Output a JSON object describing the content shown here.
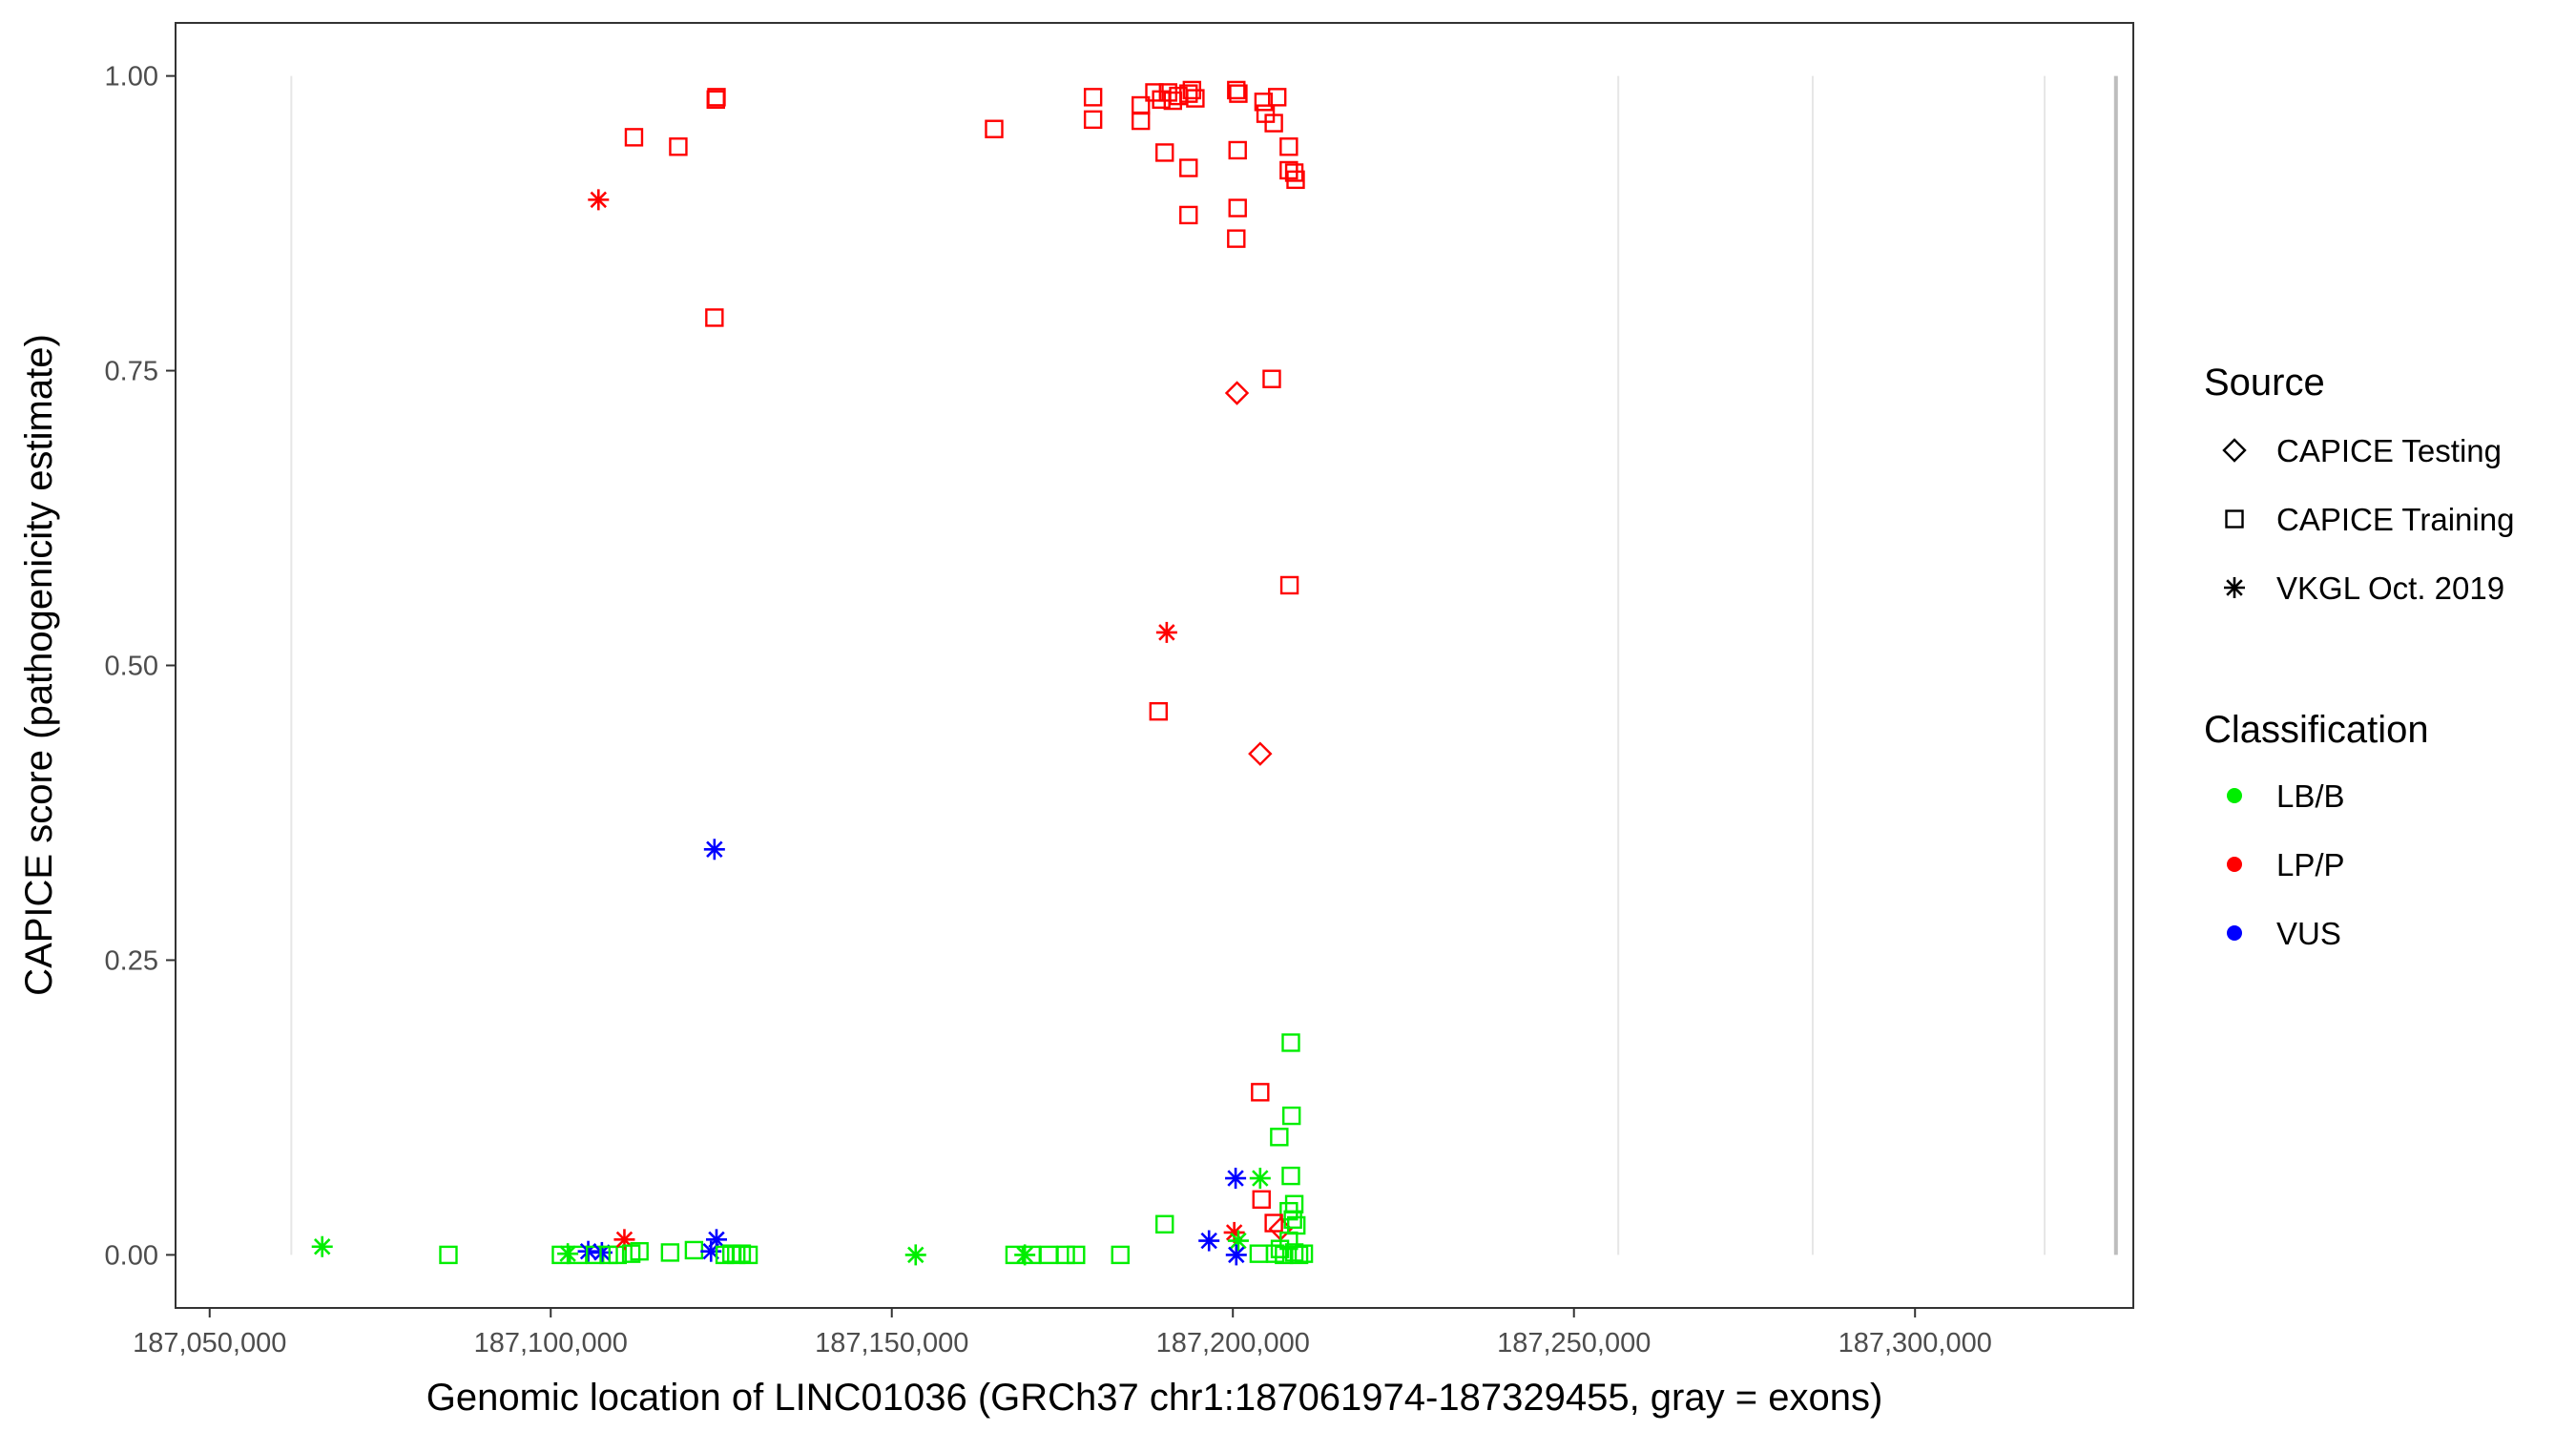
{
  "chart_data": {
    "type": "scatter",
    "xlabel": "Genomic location of LINC01036 (GRCh37 chr1:187061974-187329455, gray = exons)",
    "ylabel": "CAPICE score (pathogenicity estimate)",
    "xlim": [
      187045000,
      187332000
    ],
    "ylim": [
      -0.045,
      1.045
    ],
    "x_ticks": [
      187050000,
      187100000,
      187150000,
      187200000,
      187250000,
      187300000
    ],
    "x_tick_labels": [
      "187,050,000",
      "187,100,000",
      "187,150,000",
      "187,200,000",
      "187,250,000",
      "187,300,000"
    ],
    "y_ticks": [
      0,
      0.25,
      0.5,
      0.75,
      1
    ],
    "y_tick_labels": [
      "0.00",
      "0.25",
      "0.50",
      "0.75",
      "1.00"
    ],
    "grid": false,
    "exons": [
      {
        "x": 187061974,
        "weight": "light"
      },
      {
        "x": 187256500,
        "weight": "light"
      },
      {
        "x": 187285000,
        "weight": "light"
      },
      {
        "x": 187319000,
        "weight": "light"
      },
      {
        "x": 187329455,
        "weight": "strong"
      }
    ],
    "legend_placement": "right",
    "legend": {
      "source_title": "Source",
      "source_items": [
        {
          "label": "CAPICE Testing",
          "shape": "diamond"
        },
        {
          "label": "CAPICE Training",
          "shape": "square"
        },
        {
          "label": "VKGL Oct. 2019",
          "shape": "asterisk"
        }
      ],
      "classification_title": "Classification",
      "classification_items": [
        {
          "label": "LB/B",
          "color": "#00ee00"
        },
        {
          "label": "LP/P",
          "color": "#ff0000"
        },
        {
          "label": "VUS",
          "color": "#0000ff"
        }
      ]
    },
    "colors": {
      "LB/B": "#00ee00",
      "LP/P": "#ff0000",
      "VUS": "#0000ff"
    },
    "points": [
      {
        "x": 187124200,
        "y": 0.98,
        "source": "CAPICE Training",
        "class": "LP/P"
      },
      {
        "x": 187124300,
        "y": 0.982,
        "source": "CAPICE Training",
        "class": "LP/P"
      },
      {
        "x": 187112200,
        "y": 0.948,
        "source": "CAPICE Training",
        "class": "LP/P"
      },
      {
        "x": 187118700,
        "y": 0.94,
        "source": "CAPICE Training",
        "class": "LP/P"
      },
      {
        "x": 187124000,
        "y": 0.795,
        "source": "CAPICE Training",
        "class": "LP/P"
      },
      {
        "x": 187107000,
        "y": 0.895,
        "source": "VKGL Oct. 2019",
        "class": "LP/P"
      },
      {
        "x": 187165000,
        "y": 0.955,
        "source": "CAPICE Training",
        "class": "LP/P"
      },
      {
        "x": 187179500,
        "y": 0.982,
        "source": "CAPICE Training",
        "class": "LP/P"
      },
      {
        "x": 187179500,
        "y": 0.963,
        "source": "CAPICE Training",
        "class": "LP/P"
      },
      {
        "x": 187186500,
        "y": 0.975,
        "source": "CAPICE Training",
        "class": "LP/P"
      },
      {
        "x": 187186500,
        "y": 0.962,
        "source": "CAPICE Training",
        "class": "LP/P"
      },
      {
        "x": 187188500,
        "y": 0.986,
        "source": "CAPICE Training",
        "class": "LP/P"
      },
      {
        "x": 187189500,
        "y": 0.98,
        "source": "CAPICE Training",
        "class": "LP/P"
      },
      {
        "x": 187190500,
        "y": 0.986,
        "source": "CAPICE Training",
        "class": "LP/P"
      },
      {
        "x": 187191200,
        "y": 0.979,
        "source": "CAPICE Training",
        "class": "LP/P"
      },
      {
        "x": 187192000,
        "y": 0.983,
        "source": "CAPICE Training",
        "class": "LP/P"
      },
      {
        "x": 187193500,
        "y": 0.985,
        "source": "CAPICE Training",
        "class": "LP/P"
      },
      {
        "x": 187194000,
        "y": 0.988,
        "source": "CAPICE Training",
        "class": "LP/P"
      },
      {
        "x": 187194500,
        "y": 0.981,
        "source": "CAPICE Training",
        "class": "LP/P"
      },
      {
        "x": 187200500,
        "y": 0.988,
        "source": "CAPICE Training",
        "class": "LP/P"
      },
      {
        "x": 187200800,
        "y": 0.985,
        "source": "CAPICE Training",
        "class": "LP/P"
      },
      {
        "x": 187204500,
        "y": 0.978,
        "source": "CAPICE Training",
        "class": "LP/P"
      },
      {
        "x": 187204800,
        "y": 0.968,
        "source": "CAPICE Training",
        "class": "LP/P"
      },
      {
        "x": 187206500,
        "y": 0.982,
        "source": "CAPICE Training",
        "class": "LP/P"
      },
      {
        "x": 187206000,
        "y": 0.96,
        "source": "CAPICE Training",
        "class": "LP/P"
      },
      {
        "x": 187190000,
        "y": 0.935,
        "source": "CAPICE Training",
        "class": "LP/P"
      },
      {
        "x": 187193500,
        "y": 0.922,
        "source": "CAPICE Training",
        "class": "LP/P"
      },
      {
        "x": 187200700,
        "y": 0.937,
        "source": "CAPICE Training",
        "class": "LP/P"
      },
      {
        "x": 187208200,
        "y": 0.94,
        "source": "CAPICE Training",
        "class": "LP/P"
      },
      {
        "x": 187208200,
        "y": 0.92,
        "source": "CAPICE Training",
        "class": "LP/P"
      },
      {
        "x": 187209000,
        "y": 0.918,
        "source": "CAPICE Training",
        "class": "LP/P"
      },
      {
        "x": 187209200,
        "y": 0.912,
        "source": "CAPICE Training",
        "class": "LP/P"
      },
      {
        "x": 187193500,
        "y": 0.882,
        "source": "CAPICE Training",
        "class": "LP/P"
      },
      {
        "x": 187200700,
        "y": 0.888,
        "source": "CAPICE Training",
        "class": "LP/P"
      },
      {
        "x": 187200500,
        "y": 0.862,
        "source": "CAPICE Training",
        "class": "LP/P"
      },
      {
        "x": 187205700,
        "y": 0.743,
        "source": "CAPICE Training",
        "class": "LP/P"
      },
      {
        "x": 187200600,
        "y": 0.731,
        "source": "CAPICE Testing",
        "class": "LP/P"
      },
      {
        "x": 187208300,
        "y": 0.568,
        "source": "CAPICE Training",
        "class": "LP/P"
      },
      {
        "x": 187190300,
        "y": 0.528,
        "source": "VKGL Oct. 2019",
        "class": "LP/P"
      },
      {
        "x": 187189100,
        "y": 0.461,
        "source": "CAPICE Training",
        "class": "LP/P"
      },
      {
        "x": 187204000,
        "y": 0.425,
        "source": "CAPICE Testing",
        "class": "LP/P"
      },
      {
        "x": 187124000,
        "y": 0.344,
        "source": "VKGL Oct. 2019",
        "class": "VUS"
      },
      {
        "x": 187208500,
        "y": 0.18,
        "source": "CAPICE Training",
        "class": "LB/B"
      },
      {
        "x": 187204000,
        "y": 0.138,
        "source": "CAPICE Training",
        "class": "LP/P"
      },
      {
        "x": 187208600,
        "y": 0.118,
        "source": "CAPICE Training",
        "class": "LB/B"
      },
      {
        "x": 187206800,
        "y": 0.1,
        "source": "CAPICE Training",
        "class": "LB/B"
      },
      {
        "x": 187208500,
        "y": 0.067,
        "source": "CAPICE Training",
        "class": "LB/B"
      },
      {
        "x": 187204000,
        "y": 0.065,
        "source": "VKGL Oct. 2019",
        "class": "LB/B"
      },
      {
        "x": 187200400,
        "y": 0.065,
        "source": "VKGL Oct. 2019",
        "class": "VUS"
      },
      {
        "x": 187204200,
        "y": 0.047,
        "source": "CAPICE Training",
        "class": "LP/P"
      },
      {
        "x": 187209000,
        "y": 0.043,
        "source": "CAPICE Training",
        "class": "LB/B"
      },
      {
        "x": 187208200,
        "y": 0.037,
        "source": "CAPICE Training",
        "class": "LB/B"
      },
      {
        "x": 187190000,
        "y": 0.026,
        "source": "CAPICE Training",
        "class": "LB/B"
      },
      {
        "x": 187206000,
        "y": 0.027,
        "source": "CAPICE Training",
        "class": "LP/P"
      },
      {
        "x": 187207000,
        "y": 0.022,
        "source": "CAPICE Testing",
        "class": "LP/P"
      },
      {
        "x": 187208800,
        "y": 0.03,
        "source": "CAPICE Training",
        "class": "LB/B"
      },
      {
        "x": 187209300,
        "y": 0.025,
        "source": "CAPICE Training",
        "class": "LB/B"
      },
      {
        "x": 187200200,
        "y": 0.019,
        "source": "VKGL Oct. 2019",
        "class": "LP/P"
      },
      {
        "x": 187196500,
        "y": 0.012,
        "source": "VKGL Oct. 2019",
        "class": "VUS"
      },
      {
        "x": 187200800,
        "y": 0.012,
        "source": "VKGL Oct. 2019",
        "class": "LB/B"
      },
      {
        "x": 187200500,
        "y": 0.0,
        "source": "VKGL Oct. 2019",
        "class": "VUS"
      },
      {
        "x": 187203800,
        "y": 0.001,
        "source": "CAPICE Training",
        "class": "LB/B"
      },
      {
        "x": 187206200,
        "y": 0.001,
        "source": "CAPICE Training",
        "class": "LB/B"
      },
      {
        "x": 187206900,
        "y": 0.005,
        "source": "CAPICE Training",
        "class": "LB/B"
      },
      {
        "x": 187207500,
        "y": 0.0,
        "source": "CAPICE Training",
        "class": "LB/B"
      },
      {
        "x": 187208200,
        "y": 0.012,
        "source": "CAPICE Training",
        "class": "LB/B"
      },
      {
        "x": 187209000,
        "y": 0.002,
        "source": "CAPICE Training",
        "class": "LB/B"
      },
      {
        "x": 187209700,
        "y": 0.0,
        "source": "CAPICE Training",
        "class": "LB/B"
      },
      {
        "x": 187210400,
        "y": 0.001,
        "source": "CAPICE Training",
        "class": "LB/B"
      },
      {
        "x": 187066500,
        "y": 0.007,
        "source": "VKGL Oct. 2019",
        "class": "LB/B"
      },
      {
        "x": 187085000,
        "y": 0.0,
        "source": "CAPICE Training",
        "class": "LB/B"
      },
      {
        "x": 187101500,
        "y": 0.0,
        "source": "CAPICE Training",
        "class": "LB/B"
      },
      {
        "x": 187102500,
        "y": 0.001,
        "source": "VKGL Oct. 2019",
        "class": "LB/B"
      },
      {
        "x": 187104000,
        "y": 0.0,
        "source": "CAPICE Training",
        "class": "LB/B"
      },
      {
        "x": 187105500,
        "y": 0.003,
        "source": "VKGL Oct. 2019",
        "class": "VUS"
      },
      {
        "x": 187106500,
        "y": 0.0,
        "source": "CAPICE Training",
        "class": "LB/B"
      },
      {
        "x": 187107500,
        "y": 0.002,
        "source": "VKGL Oct. 2019",
        "class": "VUS"
      },
      {
        "x": 187108500,
        "y": 0.0,
        "source": "CAPICE Training",
        "class": "LB/B"
      },
      {
        "x": 187109800,
        "y": 0.0,
        "source": "CAPICE Training",
        "class": "LB/B"
      },
      {
        "x": 187110800,
        "y": 0.013,
        "source": "VKGL Oct. 2019",
        "class": "LP/P"
      },
      {
        "x": 187111800,
        "y": 0.001,
        "source": "CAPICE Training",
        "class": "LB/B"
      },
      {
        "x": 187113000,
        "y": 0.003,
        "source": "CAPICE Training",
        "class": "LB/B"
      },
      {
        "x": 187117500,
        "y": 0.002,
        "source": "CAPICE Training",
        "class": "LB/B"
      },
      {
        "x": 187121000,
        "y": 0.004,
        "source": "CAPICE Training",
        "class": "LB/B"
      },
      {
        "x": 187123500,
        "y": 0.003,
        "source": "VKGL Oct. 2019",
        "class": "VUS"
      },
      {
        "x": 187124300,
        "y": 0.013,
        "source": "VKGL Oct. 2019",
        "class": "VUS"
      },
      {
        "x": 187125500,
        "y": 0.0,
        "source": "CAPICE Training",
        "class": "LB/B"
      },
      {
        "x": 187126500,
        "y": 0.001,
        "source": "CAPICE Training",
        "class": "LB/B"
      },
      {
        "x": 187127200,
        "y": 0.0,
        "source": "CAPICE Training",
        "class": "LB/B"
      },
      {
        "x": 187128000,
        "y": 0.001,
        "source": "CAPICE Training",
        "class": "LB/B"
      },
      {
        "x": 187129000,
        "y": 0.0,
        "source": "CAPICE Training",
        "class": "LB/B"
      },
      {
        "x": 187153500,
        "y": 0.0,
        "source": "VKGL Oct. 2019",
        "class": "LB/B"
      },
      {
        "x": 187168000,
        "y": 0.0,
        "source": "CAPICE Training",
        "class": "LB/B"
      },
      {
        "x": 187169500,
        "y": 0.0,
        "source": "VKGL Oct. 2019",
        "class": "LB/B"
      },
      {
        "x": 187170500,
        "y": 0.0,
        "source": "CAPICE Training",
        "class": "LB/B"
      },
      {
        "x": 187173000,
        "y": 0.0,
        "source": "CAPICE Training",
        "class": "LB/B"
      },
      {
        "x": 187175500,
        "y": 0.0,
        "source": "CAPICE Training",
        "class": "LB/B"
      },
      {
        "x": 187177000,
        "y": 0.0,
        "source": "CAPICE Training",
        "class": "LB/B"
      },
      {
        "x": 187183500,
        "y": 0.0,
        "source": "CAPICE Training",
        "class": "LB/B"
      }
    ]
  }
}
